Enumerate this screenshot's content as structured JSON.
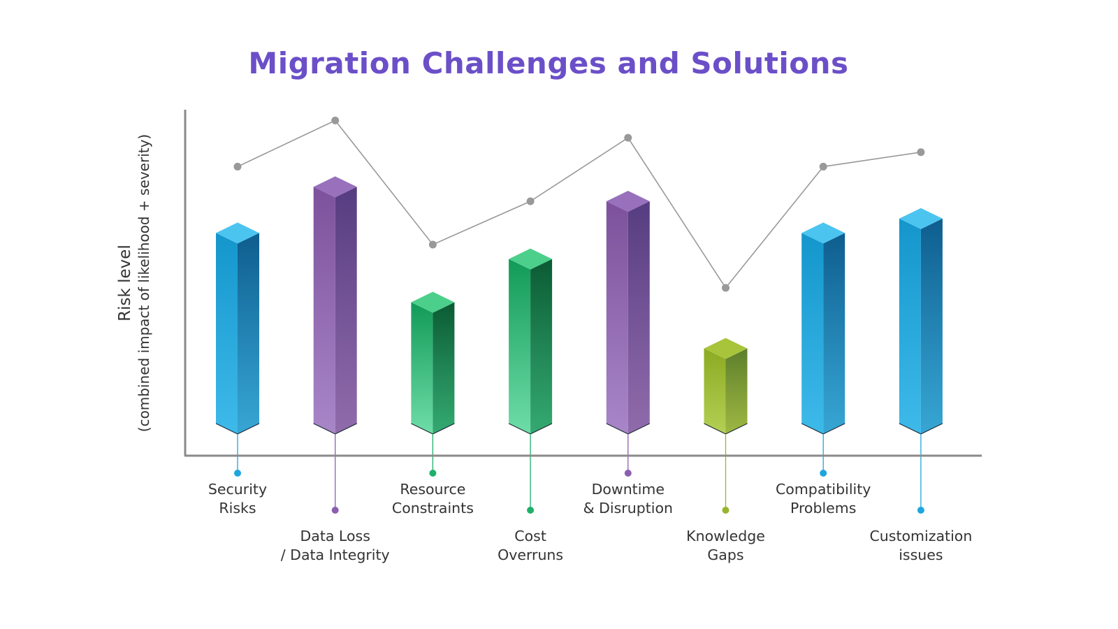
{
  "chart_data": {
    "type": "bar",
    "title": "Migration Challenges and Solutions",
    "ylabel": "Risk level",
    "ylabel_sub": "(combined impact of likelihood + severity)",
    "xlabel": "",
    "categories": [
      [
        "Security",
        "Risks"
      ],
      [
        "Data Loss",
        "/ Data Integrity"
      ],
      [
        "Resource",
        "Constraints"
      ],
      [
        "Cost",
        "Overruns"
      ],
      [
        "Downtime",
        "& Disruption"
      ],
      [
        "Knowledge",
        "Gaps"
      ],
      [
        "Compatibility",
        "Problems"
      ],
      [
        "Customization",
        "issues"
      ]
    ],
    "series": [
      {
        "type": "bar",
        "values": [
          66,
          82,
          42,
          57,
          77,
          26,
          66,
          71
        ]
      },
      {
        "type": "line",
        "values": [
          89,
          105,
          62,
          77,
          99,
          47,
          89,
          94
        ]
      }
    ],
    "ylim": [
      0,
      110
    ],
    "grid": false,
    "legend": "none",
    "bar_color_groups": [
      "blue",
      "purple",
      "green",
      "green",
      "purple",
      "olive",
      "blue",
      "blue"
    ],
    "colors": {
      "title": "#6B4FC8",
      "axis": "#8A8A8A",
      "line": "#999999",
      "blue": {
        "light": "#3EBAEA",
        "mid": "#1496CC",
        "dark": "#0E5D8E",
        "top": "#4CC4F0",
        "dot": "#1DA6DE"
      },
      "purple": {
        "light": "#A886C8",
        "mid": "#7D519C",
        "dark": "#553C80",
        "top": "#9870BC",
        "dot": "#8A5FB0"
      },
      "green": {
        "light": "#6FDDA8",
        "mid": "#119A58",
        "dark": "#0B5A33",
        "top": "#4CCF8B",
        "dot": "#1FB06A"
      },
      "olive": {
        "light": "#B4D055",
        "mid": "#8DAA22",
        "dark": "#5C7E2C",
        "top": "#A8C43B",
        "dot": "#97B42E"
      }
    }
  }
}
